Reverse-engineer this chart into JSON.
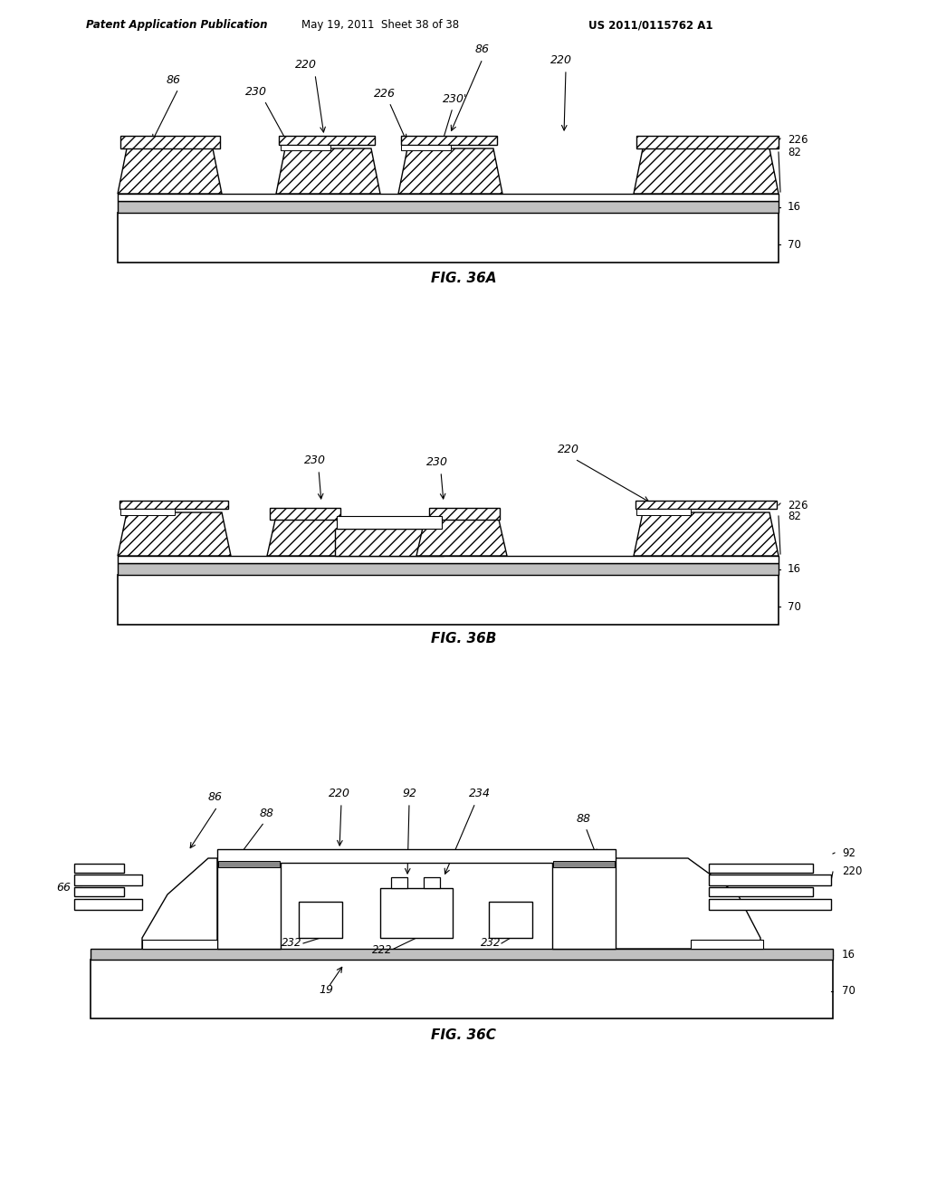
{
  "header_left": "Patent Application Publication",
  "header_middle": "May 19, 2011  Sheet 38 of 38",
  "header_right": "US 2011/0115762 A1",
  "fig_a_label": "FIG. 36A",
  "fig_b_label": "FIG. 36B",
  "fig_c_label": "FIG. 36C",
  "bg_color": "#ffffff",
  "line_color": "#000000",
  "hatch_pattern": "///",
  "light_gray": "#d0d0d0"
}
